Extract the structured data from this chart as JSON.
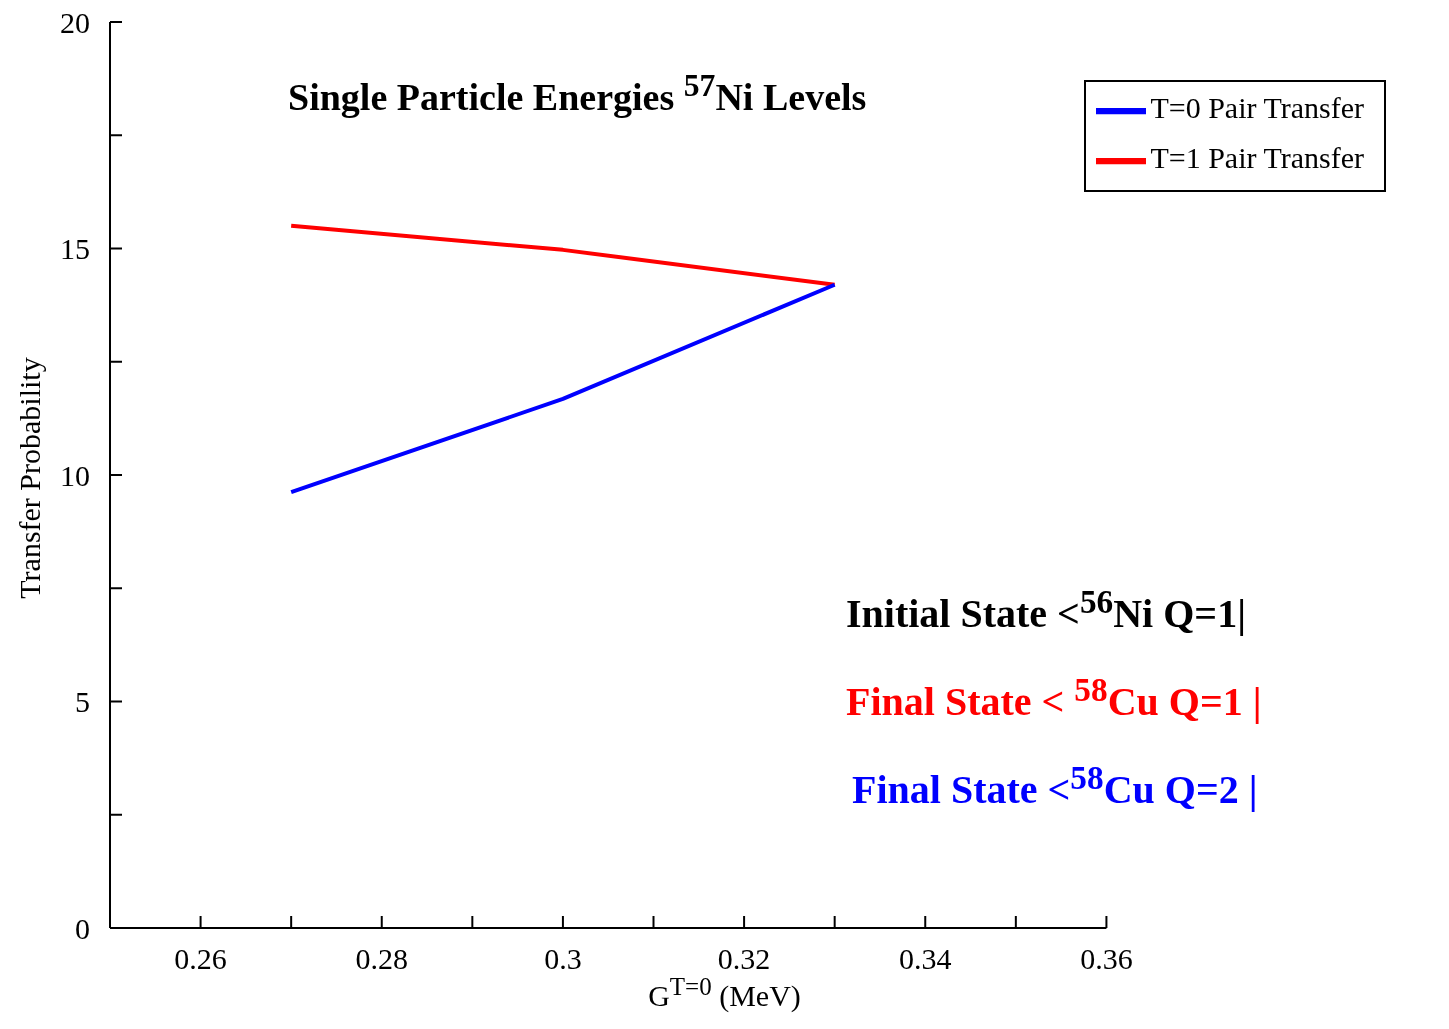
{
  "chart_data": {
    "type": "line",
    "title": "Single Particle Energies $^{57}$Ni  Levels",
    "xlabel": "G$^{T=0}$ (MeV)",
    "ylabel": "Transfer Probability",
    "series": [
      {
        "name": "T=1 Pair Transfer",
        "color": "#ff0000",
        "x": [
          0.27,
          0.3,
          0.33
        ],
        "values": [
          15.5,
          14.97,
          14.2
        ]
      },
      {
        "name": "T=0 Pair Transfer",
        "color": "#0000ff",
        "x": [
          0.27,
          0.3,
          0.33
        ],
        "values": [
          9.62,
          11.68,
          14.2
        ]
      }
    ],
    "xlim": [
      0.25,
      0.36
    ],
    "xticks": [
      {
        "value": 0.26,
        "label": "0.26"
      },
      {
        "value": 0.27,
        "label": null
      },
      {
        "value": 0.28,
        "label": "0.28"
      },
      {
        "value": 0.29,
        "label": null
      },
      {
        "value": 0.3,
        "label": "0.3"
      },
      {
        "value": 0.31,
        "label": null
      },
      {
        "value": 0.32,
        "label": "0.32"
      },
      {
        "value": 0.33,
        "label": null
      },
      {
        "value": 0.34,
        "label": "0.34"
      },
      {
        "value": 0.35,
        "label": null
      },
      {
        "value": 0.36,
        "label": "0.36"
      }
    ],
    "ylim": [
      0,
      20
    ],
    "yticks": [
      0,
      {
        "value": 2.5,
        "label": null
      },
      5,
      {
        "value": 7.5,
        "label": null
      },
      10,
      {
        "value": 12.5,
        "label": null
      },
      15,
      {
        "value": 17.5,
        "label": null
      },
      20
    ],
    "annotations": [
      "Initial State <$^{56}$Ni Q=1|",
      "Final State < $^{58}$Cu Q=1 |",
      "Final State <$^{58}$Cu Q=2 |"
    ],
    "legend": "top right",
    "grid": false,
    "marker": "none",
    "line_style": "solid"
  }
}
